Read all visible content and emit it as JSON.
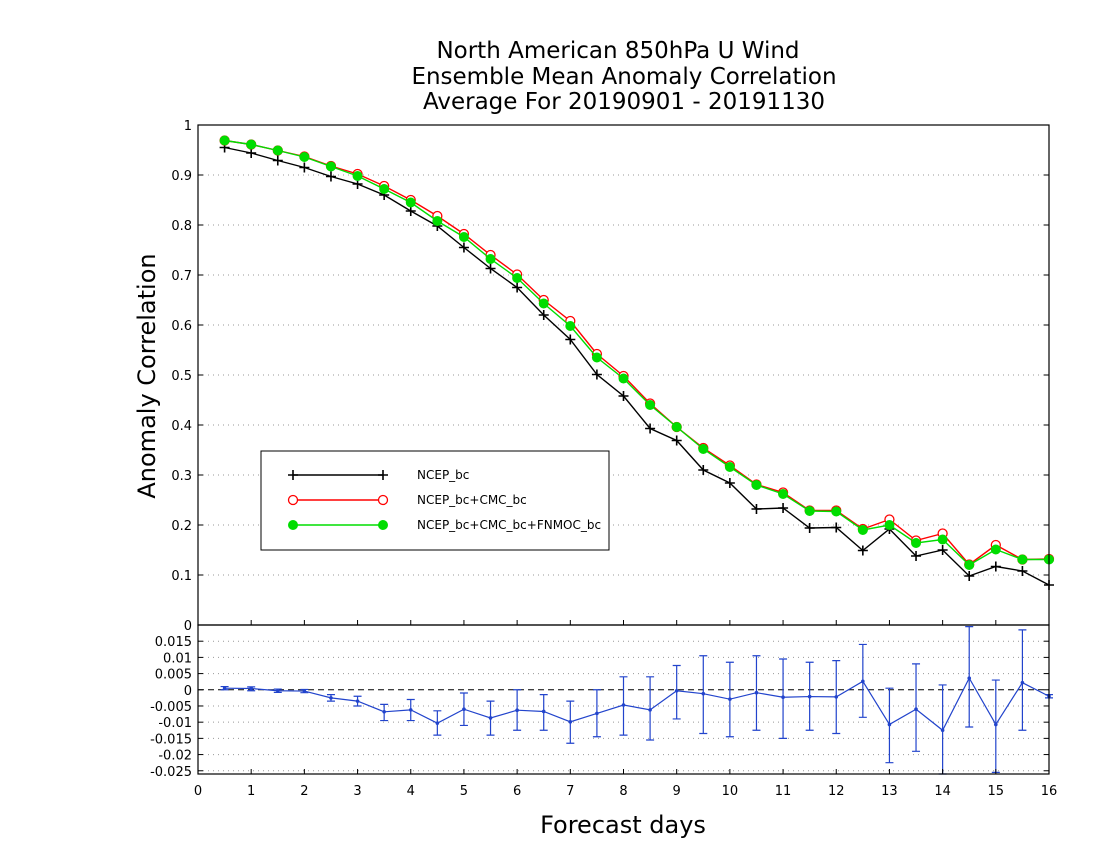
{
  "chart_data": {
    "type": "line",
    "title_lines": [
      "North American 850hPa U Wind",
      "Ensemble Mean Anomaly Correlation",
      "Average For 20190901 - 20191130"
    ],
    "xlabel": "Forecast days",
    "ylabel": "Anomaly Correlation",
    "xlim": [
      0,
      16
    ],
    "ylim": [
      0,
      1
    ],
    "x_ticks": [
      "0",
      "1",
      "2",
      "3",
      "4",
      "5",
      "6",
      "7",
      "8",
      "9",
      "10",
      "11",
      "12",
      "13",
      "14",
      "15",
      "16"
    ],
    "y_ticks": [
      "1",
      "0.9",
      "0.8",
      "0.7",
      "0.6",
      "0.5",
      "0.4",
      "0.3",
      "0.2",
      "0.1",
      "0"
    ],
    "grid": "dotted horizontal",
    "legend_position": "middle-left",
    "x": [
      0.5,
      1,
      1.5,
      2,
      2.5,
      3,
      3.5,
      4,
      4.5,
      5,
      5.5,
      6,
      6.5,
      7,
      7.5,
      8,
      8.5,
      9,
      9.5,
      10,
      10.5,
      11,
      11.5,
      12,
      12.5,
      13,
      13.5,
      14,
      14.5,
      15,
      15.5,
      16
    ],
    "series": [
      {
        "name": "NCEP_bc",
        "color": "#000000",
        "marker": "plus",
        "values": [
          0.955,
          0.944,
          0.929,
          0.915,
          0.897,
          0.882,
          0.86,
          0.828,
          0.798,
          0.755,
          0.713,
          0.675,
          0.62,
          0.571,
          0.501,
          0.458,
          0.393,
          0.369,
          0.31,
          0.284,
          0.232,
          0.234,
          0.194,
          0.195,
          0.149,
          0.192,
          0.138,
          0.15,
          0.098,
          0.117,
          0.108,
          0.08
        ]
      },
      {
        "name": "NCEP_bc+CMC_bc",
        "color": "#ff0000",
        "marker": "open-circle",
        "values": [
          0.969,
          0.961,
          0.949,
          0.937,
          0.918,
          0.902,
          0.878,
          0.85,
          0.818,
          0.782,
          0.74,
          0.701,
          0.65,
          0.608,
          0.542,
          0.498,
          0.443,
          0.396,
          0.354,
          0.319,
          0.281,
          0.265,
          0.229,
          0.229,
          0.192,
          0.211,
          0.169,
          0.183,
          0.121,
          0.16,
          0.131,
          0.132
        ]
      },
      {
        "name": "NCEP_bc+CMC_bc+FNMOC_bc",
        "color": "#00dd00",
        "marker": "filled-circle",
        "values": [
          0.969,
          0.961,
          0.949,
          0.936,
          0.917,
          0.898,
          0.872,
          0.845,
          0.808,
          0.776,
          0.732,
          0.694,
          0.643,
          0.598,
          0.535,
          0.493,
          0.44,
          0.396,
          0.352,
          0.316,
          0.28,
          0.262,
          0.228,
          0.227,
          0.19,
          0.2,
          0.164,
          0.171,
          0.12,
          0.151,
          0.131,
          0.131
        ]
      }
    ],
    "difference_panel": {
      "ylim": [
        -0.026,
        0.02
      ],
      "y_ticks": [
        "0.015",
        "0.01",
        "0.005",
        "0",
        "-0.005",
        "-0.01",
        "-0.015",
        "-0.02",
        "-0.025"
      ],
      "color": "#2244cc",
      "reference_line": 0,
      "x": [
        0.5,
        1,
        1.5,
        2,
        2.5,
        3,
        3.5,
        4,
        4.5,
        5,
        5.5,
        6,
        6.5,
        7,
        7.5,
        8,
        8.5,
        9,
        9.5,
        10,
        10.5,
        11,
        11.5,
        12,
        12.5,
        13,
        13.5,
        14,
        14.5,
        15,
        15.5,
        16
      ],
      "values": [
        0.0005,
        0.0004,
        -0.0003,
        -0.0004,
        -0.0025,
        -0.0035,
        -0.0068,
        -0.0062,
        -0.0103,
        -0.006,
        -0.0087,
        -0.0063,
        -0.0067,
        -0.0099,
        -0.0073,
        -0.0047,
        -0.0062,
        -0.0003,
        -0.0012,
        -0.0029,
        -0.0009,
        -0.0023,
        -0.0021,
        -0.0022,
        0.0026,
        -0.0107,
        -0.006,
        -0.0125,
        0.0036,
        -0.0107,
        0.0022,
        -0.002
      ],
      "error_low": [
        0,
        -0.0003,
        -0.0008,
        -0.0009,
        -0.0035,
        -0.005,
        -0.0095,
        -0.0095,
        -0.014,
        -0.011,
        -0.014,
        -0.0125,
        -0.0125,
        -0.0165,
        -0.0145,
        -0.014,
        -0.0155,
        -0.009,
        -0.0135,
        -0.0145,
        -0.0125,
        -0.015,
        -0.0125,
        -0.0135,
        -0.0085,
        -0.0225,
        -0.019,
        -0.026,
        -0.0115,
        -0.0255,
        -0.0125,
        -0.0025
      ],
      "error_high": [
        0.001,
        0.0009,
        0.0002,
        0.0001,
        -0.0015,
        -0.002,
        -0.0045,
        -0.003,
        -0.0065,
        -0.001,
        -0.0035,
        0,
        -0.0015,
        -0.0035,
        0,
        0.004,
        0.004,
        0.0075,
        0.0105,
        0.0085,
        0.0105,
        0.0095,
        0.0085,
        0.009,
        0.014,
        0.0005,
        0.008,
        0.0015,
        0.0195,
        0.003,
        0.0185,
        -0.0015
      ]
    }
  }
}
